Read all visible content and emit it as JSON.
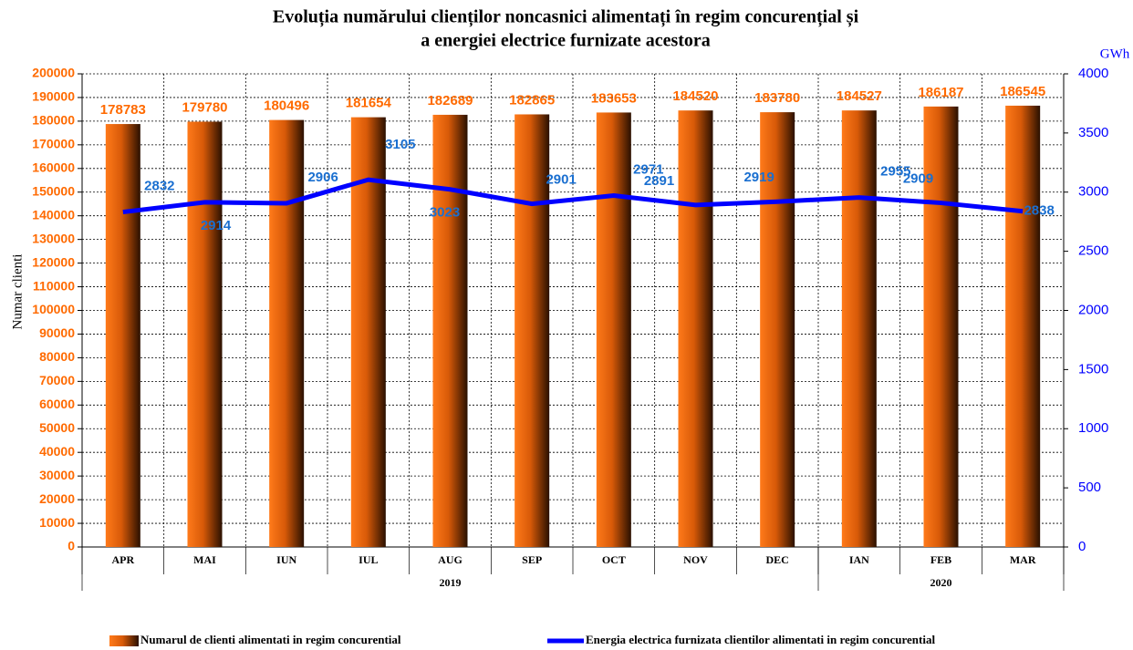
{
  "chart_data": {
    "type": "bar",
    "title": [
      "Evoluția numărului clienților noncasnici alimentați în regim concurențial și",
      "a energiei electrice furnizate acestora"
    ],
    "y_label": "Numar clienti",
    "y2_label": "GWh",
    "categories": [
      "APR",
      "MAI",
      "IUN",
      "IUL",
      "AUG",
      "SEP",
      "OCT",
      "NOV",
      "DEC",
      "IAN",
      "FEB",
      "MAR"
    ],
    "groups": [
      {
        "label": "2019",
        "span": 9
      },
      {
        "label": "2020",
        "span": 3
      }
    ],
    "series": [
      {
        "name": "Numarul de clienti alimentati in regim concurential",
        "type": "bar",
        "color": "#ff6a00",
        "values": [
          178783,
          179780,
          180496,
          181654,
          182689,
          182865,
          183653,
          184520,
          183780,
          184527,
          186187,
          186545
        ]
      },
      {
        "name": "Energia electrica furnizata clientilor alimentati in regim concurential",
        "type": "line",
        "axis": "y2",
        "color": "#0000ff",
        "values": [
          2832,
          2914,
          2906,
          3105,
          3023,
          2901,
          2971,
          2891,
          2919,
          2955,
          2909,
          2838
        ]
      }
    ],
    "ylim": [
      0,
      200000
    ],
    "yticks": [
      0,
      10000,
      20000,
      30000,
      40000,
      50000,
      60000,
      70000,
      80000,
      90000,
      100000,
      110000,
      120000,
      130000,
      140000,
      150000,
      160000,
      170000,
      180000,
      190000,
      200000
    ],
    "y2lim": [
      0,
      4000
    ],
    "y2ticks": [
      0,
      500,
      1000,
      1500,
      2000,
      2500,
      3000,
      3500,
      4000
    ],
    "grid": true
  }
}
